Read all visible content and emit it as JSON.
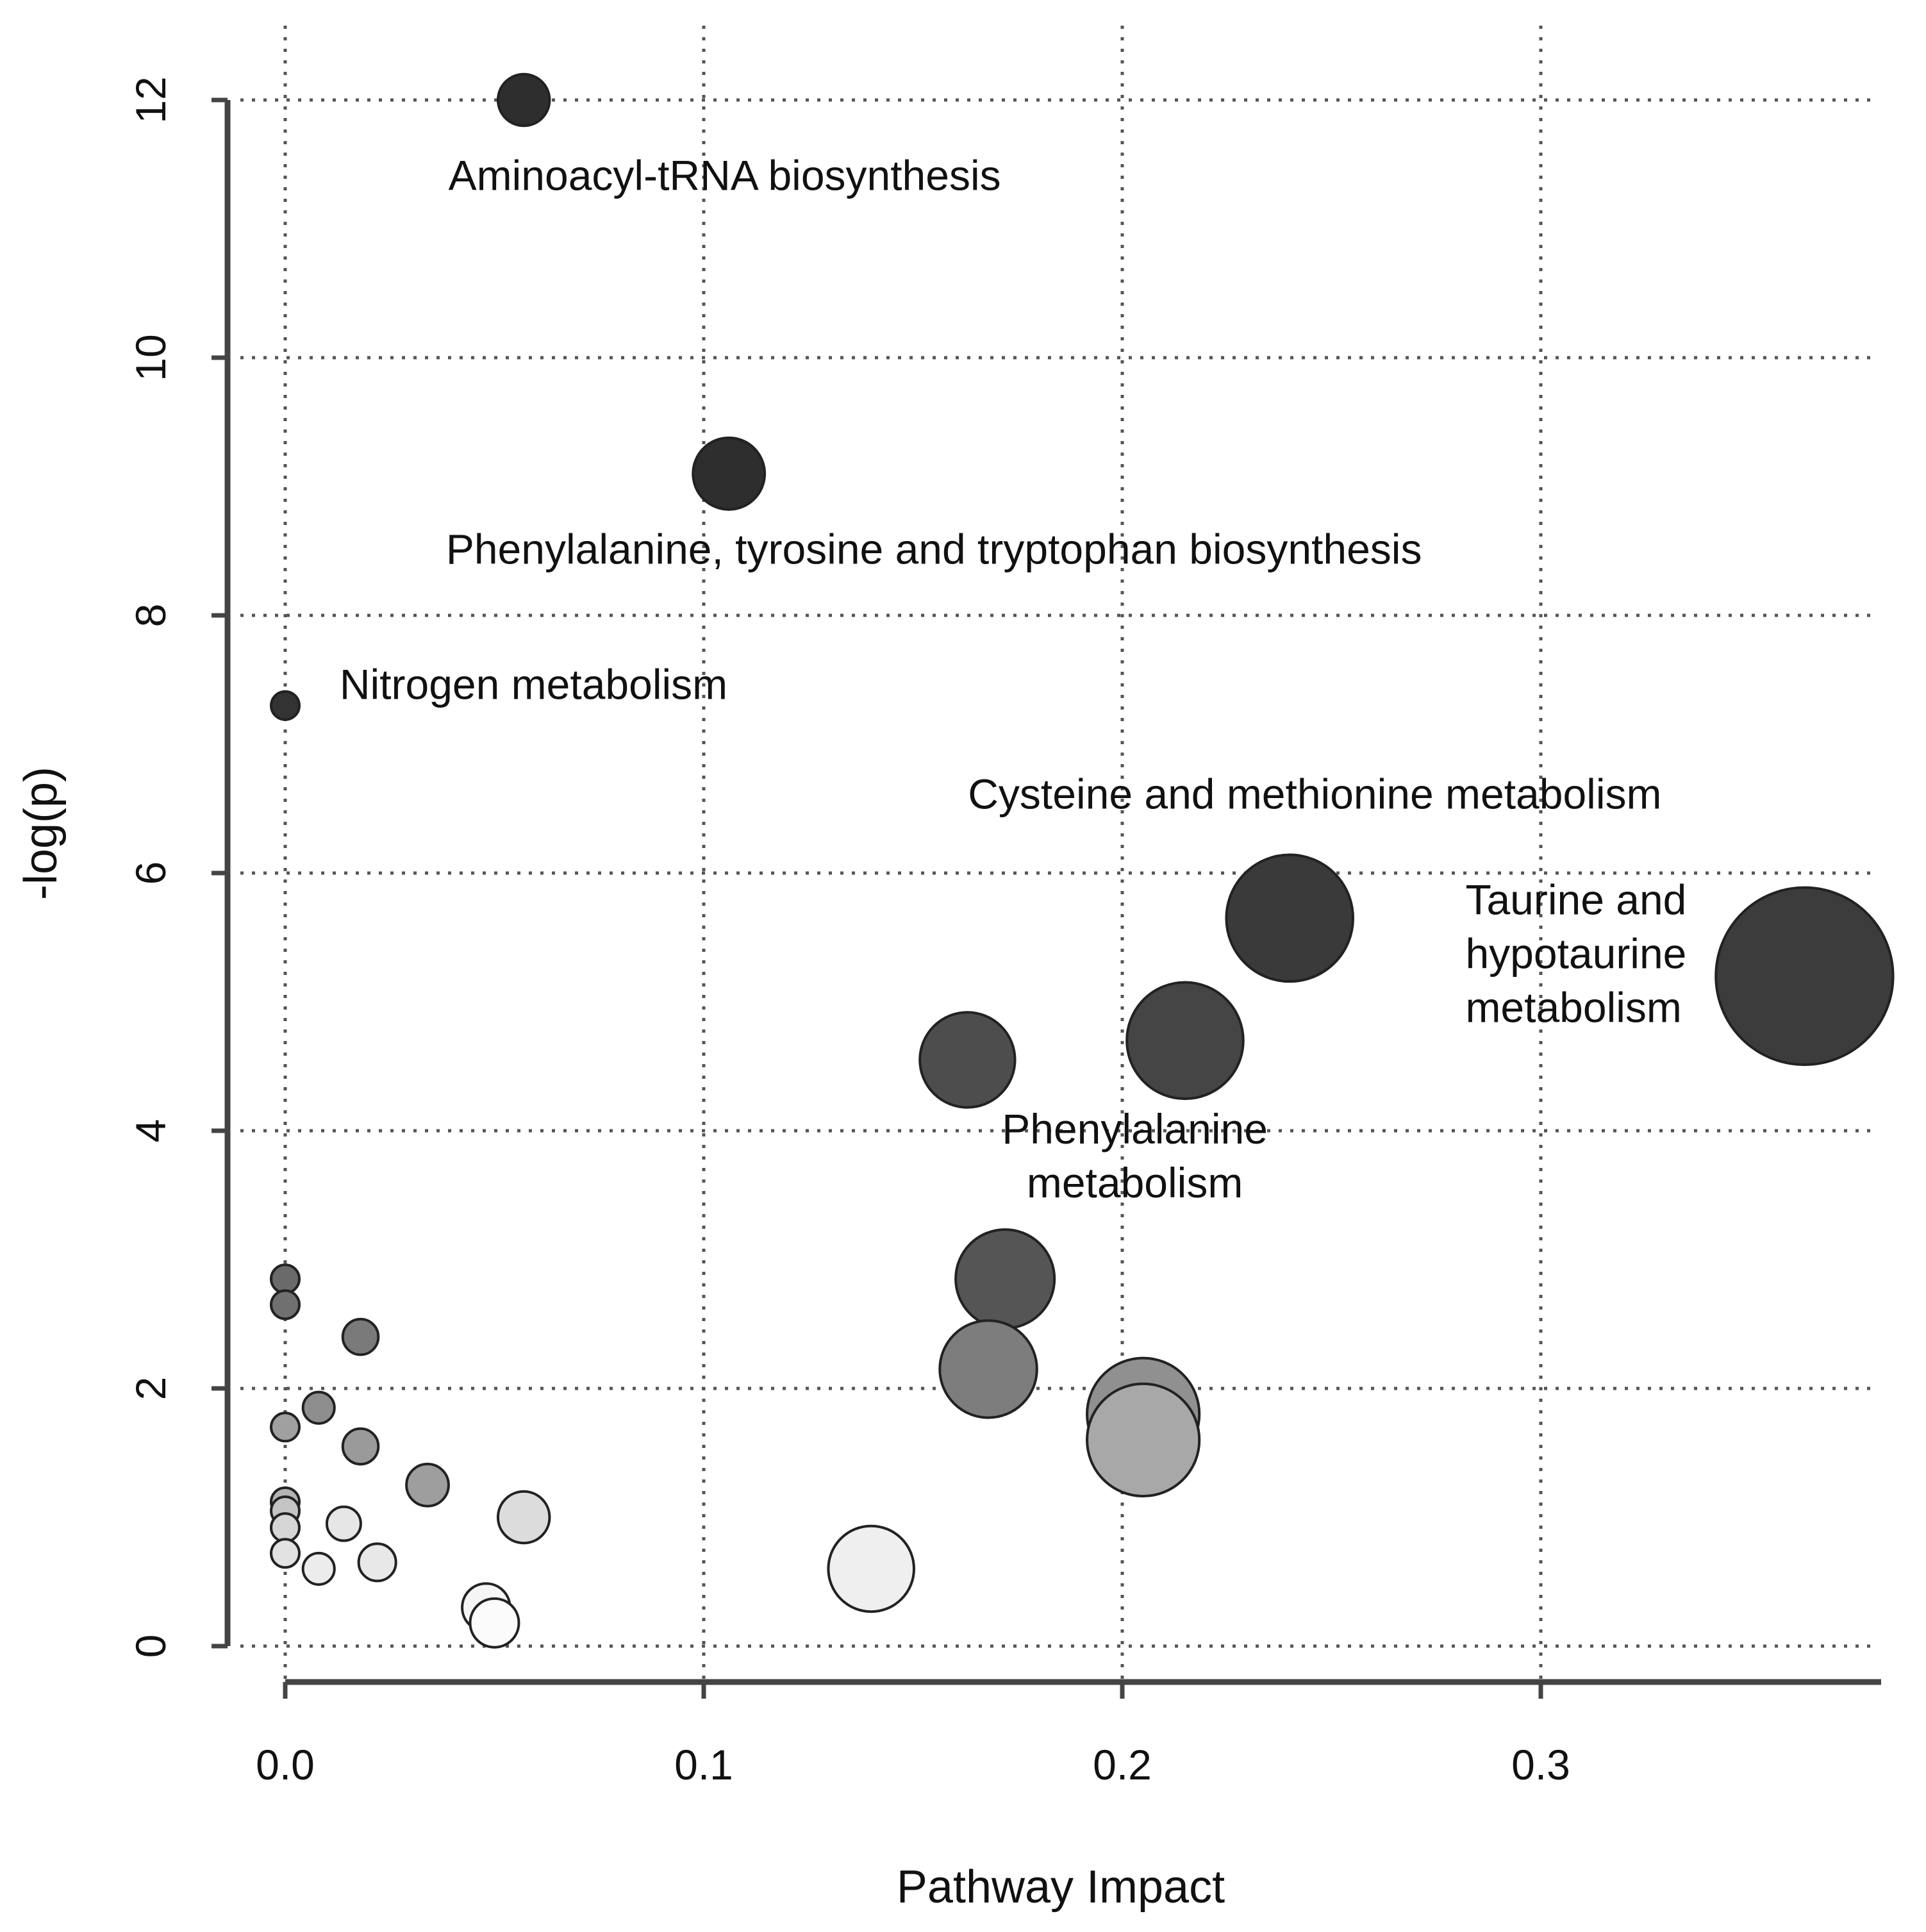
{
  "chart_data": {
    "type": "scatter",
    "xlabel": "Pathway Impact",
    "ylabel": "-log(p)",
    "xlim": [
      0.0,
      0.38
    ],
    "ylim": [
      0,
      12
    ],
    "xticks": [
      "0.0",
      "0.1",
      "0.2",
      "0.3"
    ],
    "xtick_values": [
      0.0,
      0.1,
      0.2,
      0.3
    ],
    "yticks": [
      "0",
      "2",
      "4",
      "6",
      "8",
      "10",
      "12"
    ],
    "ytick_values": [
      0,
      2,
      4,
      6,
      8,
      10,
      12
    ],
    "grid": true,
    "encoding": "point size = pathway impact; fill darkness = significance (-log(p))",
    "points": [
      {
        "x": 0.057,
        "y": 12.0,
        "fill": "#2e2e2e",
        "label": "Aminoacyl-tRNA biosynthesis"
      },
      {
        "x": 0.106,
        "y": 9.1,
        "fill": "#2e2e2e",
        "label": "Phenylalanine, tyrosine and tryptophan biosynthesis"
      },
      {
        "x": 0.0,
        "y": 7.3,
        "fill": "#333333",
        "label": "Nitrogen metabolism"
      },
      {
        "x": 0.24,
        "y": 5.65,
        "fill": "#3a3a3a",
        "label": "Cysteine and methionine metabolism"
      },
      {
        "x": 0.363,
        "y": 5.2,
        "fill": "#3c3c3c",
        "label": "Taurine and hypotaurine metabolism"
      },
      {
        "x": 0.215,
        "y": 4.7,
        "fill": "#454545",
        "label": "Phenylalanine metabolism"
      },
      {
        "x": 0.163,
        "y": 4.55,
        "fill": "#4d4d4d",
        "label": ""
      },
      {
        "x": 0.172,
        "y": 2.85,
        "fill": "#555555",
        "label": ""
      },
      {
        "x": 0.168,
        "y": 2.15,
        "fill": "#7d7d7d",
        "label": ""
      },
      {
        "x": 0.205,
        "y": 1.8,
        "fill": "#909090",
        "label": ""
      },
      {
        "x": 0.205,
        "y": 1.6,
        "fill": "#a8a8a8",
        "label": ""
      },
      {
        "x": 0.14,
        "y": 0.6,
        "fill": "#efefef",
        "label": ""
      },
      {
        "x": 0.057,
        "y": 1.0,
        "fill": "#dcdcdc",
        "label": ""
      },
      {
        "x": 0.048,
        "y": 0.3,
        "fill": "#f5f5f5",
        "label": ""
      },
      {
        "x": 0.05,
        "y": 0.18,
        "fill": "#fbfbfb",
        "label": ""
      },
      {
        "x": 0.034,
        "y": 1.25,
        "fill": "#9e9e9e",
        "label": ""
      },
      {
        "x": 0.018,
        "y": 2.4,
        "fill": "#7a7a7a",
        "label": ""
      },
      {
        "x": 0.018,
        "y": 1.55,
        "fill": "#9a9a9a",
        "label": ""
      },
      {
        "x": 0.008,
        "y": 1.85,
        "fill": "#8e8e8e",
        "label": ""
      },
      {
        "x": 0.0,
        "y": 2.85,
        "fill": "#6a6a6a",
        "label": ""
      },
      {
        "x": 0.0,
        "y": 2.65,
        "fill": "#707070",
        "label": ""
      },
      {
        "x": 0.0,
        "y": 1.7,
        "fill": "#a0a0a0",
        "label": ""
      },
      {
        "x": 0.0,
        "y": 1.12,
        "fill": "#b4b4b4",
        "label": ""
      },
      {
        "x": 0.0,
        "y": 1.05,
        "fill": "#c4c4c4",
        "label": ""
      },
      {
        "x": 0.0,
        "y": 0.92,
        "fill": "#d6d6d6",
        "label": ""
      },
      {
        "x": 0.0,
        "y": 0.72,
        "fill": "#e2e2e2",
        "label": ""
      },
      {
        "x": 0.014,
        "y": 0.95,
        "fill": "#e6e6e6",
        "label": ""
      },
      {
        "x": 0.008,
        "y": 0.6,
        "fill": "#ececec",
        "label": ""
      },
      {
        "x": 0.022,
        "y": 0.65,
        "fill": "#e8e8e8",
        "label": ""
      }
    ],
    "annotations": [
      {
        "lines": [
          "Aminoacyl-tRNA biosynthesis"
        ],
        "x": 0.105,
        "y": 11.3,
        "anchor": "middle"
      },
      {
        "lines": [
          "Phenylalanine, tyrosine and tryptophan biosynthesis"
        ],
        "x": 0.155,
        "y": 8.4,
        "anchor": "middle"
      },
      {
        "lines": [
          "Nitrogen metabolism"
        ],
        "x": 0.013,
        "y": 7.35,
        "anchor": "start"
      },
      {
        "lines": [
          "Cysteine and methionine metabolism"
        ],
        "x": 0.246,
        "y": 6.5,
        "anchor": "middle"
      },
      {
        "lines": [
          "Taurine and",
          "hypotaurine",
          "metabolism"
        ],
        "x": 0.282,
        "y": 5.68,
        "anchor": "start"
      },
      {
        "lines": [
          "Phenylalanine",
          "metabolism"
        ],
        "x": 0.203,
        "y": 3.9,
        "anchor": "middle"
      }
    ]
  }
}
